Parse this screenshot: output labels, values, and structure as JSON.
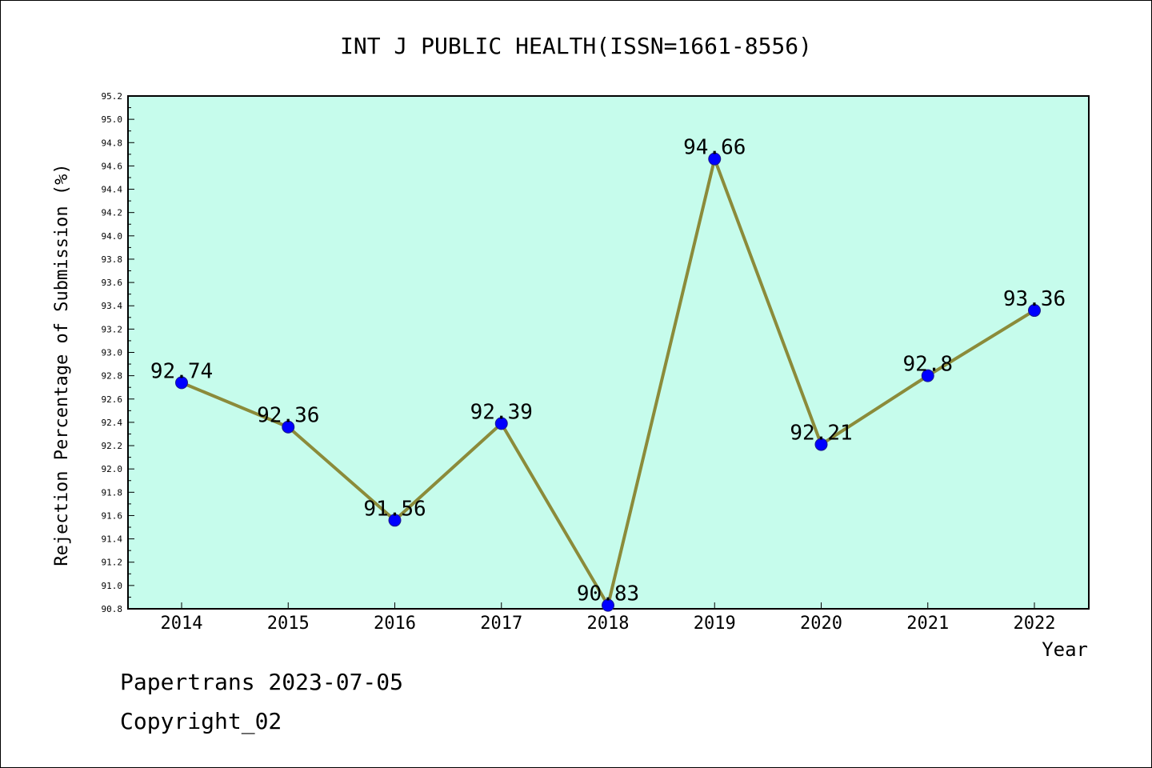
{
  "chart_data": {
    "type": "line",
    "title": "INT J PUBLIC HEALTH(ISSN=1661-8556)",
    "xlabel": "Year",
    "ylabel": "Rejection Percentage of Submission (%)",
    "x": [
      "2014",
      "2015",
      "2016",
      "2017",
      "2018",
      "2019",
      "2020",
      "2021",
      "2022"
    ],
    "series": [
      {
        "values": [
          92.74,
          92.36,
          91.56,
          92.39,
          90.83,
          94.66,
          92.21,
          92.8,
          93.36
        ]
      }
    ],
    "data_labels": [
      "92.74",
      "92.36",
      "91.56",
      "92.39",
      "90.83",
      "94.66",
      "92.21",
      "92.8",
      "93.36"
    ],
    "ylim": [
      90.8,
      95.2
    ],
    "y_ticks": [
      "90.8",
      "91.0",
      "91.2",
      "91.4",
      "91.6",
      "91.8",
      "92.0",
      "92.2",
      "92.4",
      "92.6",
      "92.8",
      "93.0",
      "93.2",
      "93.4",
      "93.6",
      "93.8",
      "94.0",
      "94.2",
      "94.4",
      "94.6",
      "94.8",
      "95.0",
      "95.2"
    ],
    "grid": false,
    "legend": "none",
    "colors": {
      "plot_background": "#c6fcec",
      "line": "#8b8b3a",
      "marker": "#0000ff"
    }
  },
  "footer": {
    "date": "Papertrans 2023-07-05",
    "copyright": "Copyright_02"
  }
}
